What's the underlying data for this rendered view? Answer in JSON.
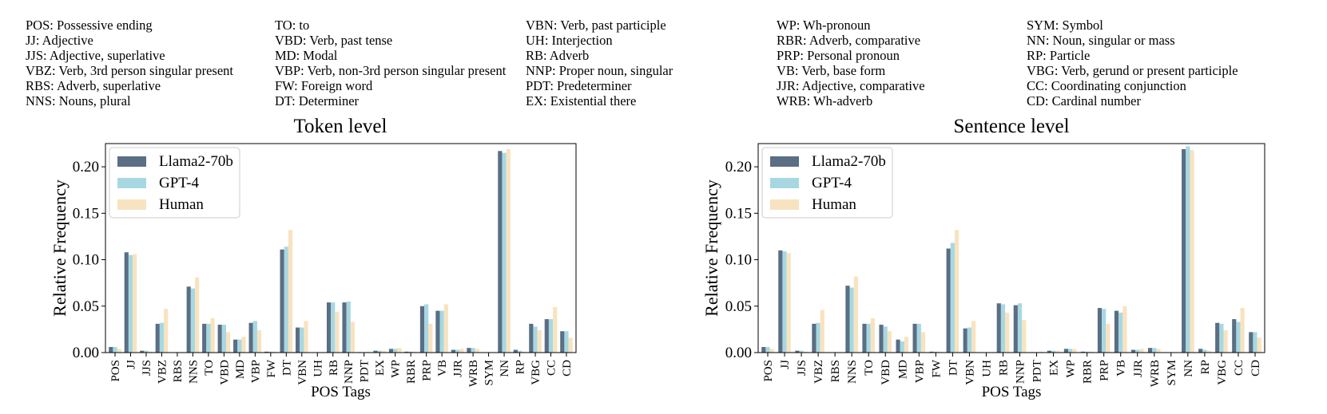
{
  "pos_legend": [
    [
      "POS: Possessive ending",
      "JJ: Adjective",
      "JJS: Adjective, superlative",
      "VBZ: Verb, 3rd person singular present",
      "RBS: Adverb, superlative",
      "NNS: Nouns, plural"
    ],
    [
      "TO: to",
      "VBD: Verb, past tense",
      "MD: Modal",
      "VBP: Verb, non-3rd person singular present",
      "FW: Foreign word",
      "DT: Determiner"
    ],
    [
      "VBN: Verb, past participle",
      "UH: Interjection",
      "RB: Adverb",
      "NNP: Proper noun, singular",
      "PDT: Predeterminer",
      "EX: Existential there"
    ],
    [
      "WP: Wh-pronoun",
      "RBR: Adverb, comparative",
      "PRP: Personal pronoun",
      "VB: Verb, base form",
      "JJR: Adjective, comparative",
      "WRB: Wh-adverb"
    ],
    [
      "SYM: Symbol",
      "NN: Noun, singular or mass",
      "RP: Particle",
      "VBG: Verb, gerund or present participle",
      "CC: Coordinating conjunction",
      "CD: Cardinal number"
    ]
  ],
  "chart_data": [
    {
      "type": "bar",
      "title": "Token level",
      "xlabel": "POS Tags",
      "ylabel": "Relative Frequency",
      "ylim": [
        0,
        0.225
      ],
      "yticks": [
        "0.00",
        "0.05",
        "0.10",
        "0.15",
        "0.20"
      ],
      "legend_position": "upper-left",
      "categories": [
        "POS",
        "JJ",
        "JJS",
        "VBZ",
        "RBS",
        "NNS",
        "TO",
        "VBD",
        "MD",
        "VBP",
        "FW",
        "DT",
        "VBN",
        "UH",
        "RB",
        "NNP",
        "PDT",
        "EX",
        "WP",
        "RBR",
        "PRP",
        "VB",
        "JJR",
        "WRB",
        "SYM",
        "NN",
        "RP",
        "VBG",
        "CC",
        "CD"
      ],
      "series": [
        {
          "name": "Llama2-70b",
          "color": "#5a6e84",
          "values": [
            0.006,
            0.108,
            0.002,
            0.031,
            0.0003,
            0.071,
            0.031,
            0.03,
            0.014,
            0.032,
            0.001,
            0.111,
            0.027,
            0.0003,
            0.054,
            0.054,
            0.0005,
            0.002,
            0.004,
            0.001,
            0.05,
            0.045,
            0.003,
            0.005,
            0.0003,
            0.217,
            0.003,
            0.031,
            0.036,
            0.023
          ]
        },
        {
          "name": "GPT-4",
          "color": "#a7d8e2",
          "values": [
            0.006,
            0.105,
            0.002,
            0.032,
            0.0003,
            0.069,
            0.031,
            0.03,
            0.014,
            0.034,
            0.001,
            0.114,
            0.027,
            0.0003,
            0.054,
            0.055,
            0.0005,
            0.002,
            0.004,
            0.001,
            0.052,
            0.045,
            0.003,
            0.005,
            0.0003,
            0.215,
            0.002,
            0.028,
            0.036,
            0.023
          ]
        },
        {
          "name": "Human",
          "color": "#f8e3c0",
          "values": [
            0.004,
            0.106,
            0.001,
            0.047,
            0.0003,
            0.081,
            0.037,
            0.022,
            0.017,
            0.024,
            0.001,
            0.132,
            0.034,
            0.0003,
            0.044,
            0.033,
            0.001,
            0.002,
            0.005,
            0.001,
            0.031,
            0.052,
            0.004,
            0.004,
            0.0003,
            0.219,
            0.001,
            0.024,
            0.049,
            0.016
          ]
        }
      ]
    },
    {
      "type": "bar",
      "title": "Sentence level",
      "xlabel": "POS Tags",
      "ylabel": "Relative Frequency",
      "ylim": [
        0,
        0.225
      ],
      "yticks": [
        "0.00",
        "0.05",
        "0.10",
        "0.15",
        "0.20"
      ],
      "legend_position": "upper-left",
      "categories": [
        "POS",
        "JJ",
        "JJS",
        "VBZ",
        "RBS",
        "NNS",
        "TO",
        "VBD",
        "MD",
        "VBP",
        "FW",
        "DT",
        "VBN",
        "UH",
        "RB",
        "NNP",
        "PDT",
        "EX",
        "WP",
        "RBR",
        "PRP",
        "VB",
        "JJR",
        "WRB",
        "SYM",
        "NN",
        "RP",
        "VBG",
        "CC",
        "CD"
      ],
      "series": [
        {
          "name": "Llama2-70b",
          "color": "#5a6e84",
          "values": [
            0.006,
            0.11,
            0.002,
            0.031,
            0.0003,
            0.072,
            0.031,
            0.03,
            0.014,
            0.031,
            0.001,
            0.112,
            0.026,
            0.0003,
            0.053,
            0.051,
            0.0005,
            0.002,
            0.004,
            0.001,
            0.048,
            0.045,
            0.003,
            0.005,
            0.0003,
            0.219,
            0.004,
            0.032,
            0.036,
            0.022
          ]
        },
        {
          "name": "GPT-4",
          "color": "#a7d8e2",
          "values": [
            0.006,
            0.109,
            0.002,
            0.032,
            0.0003,
            0.07,
            0.031,
            0.028,
            0.012,
            0.031,
            0.001,
            0.118,
            0.027,
            0.0003,
            0.052,
            0.053,
            0.0005,
            0.002,
            0.004,
            0.001,
            0.047,
            0.043,
            0.003,
            0.005,
            0.0003,
            0.222,
            0.003,
            0.031,
            0.033,
            0.022
          ]
        },
        {
          "name": "Human",
          "color": "#f8e3c0",
          "values": [
            0.004,
            0.107,
            0.001,
            0.046,
            0.0003,
            0.082,
            0.037,
            0.023,
            0.017,
            0.022,
            0.001,
            0.132,
            0.034,
            0.0003,
            0.043,
            0.035,
            0.001,
            0.002,
            0.004,
            0.001,
            0.031,
            0.05,
            0.004,
            0.004,
            0.0003,
            0.218,
            0.002,
            0.024,
            0.048,
            0.016
          ]
        }
      ]
    }
  ]
}
